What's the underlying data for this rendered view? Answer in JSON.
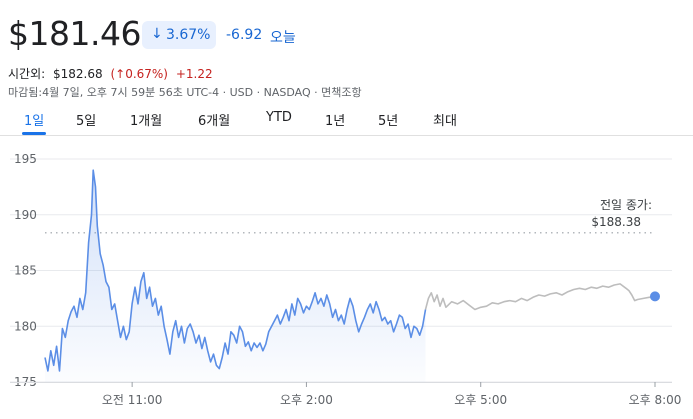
{
  "quote": {
    "price": "$181.46",
    "change_pct": "3.67%",
    "change_abs": "-6.92",
    "period_label": "오늘",
    "after_hours_label": "시간외:",
    "after_hours_price": "$182.68",
    "after_hours_pct": "(↑0.67%)",
    "after_hours_abs": "+1.22",
    "closed_line": "마감됨:4월 7일, 오후 7시 59분 56초 UTC-4 · USD · NASDAQ · 면책조항",
    "down_arrow": "↓",
    "colors": {
      "down": "#1967d2",
      "up": "#c5221f",
      "line": "#5b8ee6",
      "ext_line": "#bdbdbd"
    }
  },
  "tabs": [
    {
      "label": "1일",
      "active": true
    },
    {
      "label": "5일"
    },
    {
      "label": "1개월"
    },
    {
      "label": "6개월"
    },
    {
      "label": "YTD"
    },
    {
      "label": "1년"
    },
    {
      "label": "5년"
    },
    {
      "label": "최대"
    }
  ],
  "chart_data": {
    "type": "line",
    "title": "",
    "xlabel": "",
    "ylabel": "",
    "ylim": [
      175,
      195
    ],
    "yticks": [
      175,
      180,
      185,
      190,
      195
    ],
    "xticks": [
      {
        "t": 1.5,
        "label": "오전 11:00"
      },
      {
        "t": 4.5,
        "label": "오후 2:00"
      },
      {
        "t": 7.5,
        "label": "오후 5:00"
      },
      {
        "t": 10.5,
        "label": "오후 8:00"
      }
    ],
    "x_unit": "hours since 9:30",
    "previous_close": 188.38,
    "previous_close_label": [
      "전일 종가:",
      "$188.38"
    ],
    "regular_session": [
      [
        0.0,
        177.2
      ],
      [
        0.05,
        176.0
      ],
      [
        0.1,
        177.8
      ],
      [
        0.15,
        176.5
      ],
      [
        0.2,
        178.2
      ],
      [
        0.25,
        176.0
      ],
      [
        0.3,
        179.8
      ],
      [
        0.35,
        179.0
      ],
      [
        0.4,
        180.5
      ],
      [
        0.45,
        181.3
      ],
      [
        0.5,
        181.8
      ],
      [
        0.55,
        180.8
      ],
      [
        0.6,
        182.5
      ],
      [
        0.65,
        181.5
      ],
      [
        0.7,
        183.0
      ],
      [
        0.75,
        187.5
      ],
      [
        0.8,
        190.0
      ],
      [
        0.83,
        194.0
      ],
      [
        0.87,
        192.5
      ],
      [
        0.9,
        189.0
      ],
      [
        0.95,
        186.5
      ],
      [
        1.0,
        185.5
      ],
      [
        1.05,
        184.0
      ],
      [
        1.1,
        183.5
      ],
      [
        1.15,
        181.5
      ],
      [
        1.2,
        182.0
      ],
      [
        1.25,
        180.5
      ],
      [
        1.3,
        179.0
      ],
      [
        1.35,
        180.0
      ],
      [
        1.4,
        178.8
      ],
      [
        1.45,
        179.5
      ],
      [
        1.5,
        182.0
      ],
      [
        1.55,
        183.5
      ],
      [
        1.6,
        182.0
      ],
      [
        1.65,
        184.0
      ],
      [
        1.7,
        184.8
      ],
      [
        1.75,
        182.5
      ],
      [
        1.8,
        183.5
      ],
      [
        1.85,
        181.8
      ],
      [
        1.9,
        182.5
      ],
      [
        1.95,
        181.0
      ],
      [
        2.0,
        181.8
      ],
      [
        2.05,
        180.0
      ],
      [
        2.1,
        178.8
      ],
      [
        2.15,
        177.5
      ],
      [
        2.2,
        179.5
      ],
      [
        2.25,
        180.5
      ],
      [
        2.3,
        179.0
      ],
      [
        2.35,
        180.0
      ],
      [
        2.4,
        178.5
      ],
      [
        2.45,
        179.8
      ],
      [
        2.5,
        180.2
      ],
      [
        2.55,
        179.5
      ],
      [
        2.6,
        178.5
      ],
      [
        2.65,
        179.2
      ],
      [
        2.7,
        178.0
      ],
      [
        2.75,
        179.0
      ],
      [
        2.8,
        177.8
      ],
      [
        2.85,
        176.8
      ],
      [
        2.9,
        177.5
      ],
      [
        2.95,
        176.5
      ],
      [
        3.0,
        176.2
      ],
      [
        3.05,
        177.2
      ],
      [
        3.1,
        178.5
      ],
      [
        3.15,
        177.5
      ],
      [
        3.2,
        179.5
      ],
      [
        3.25,
        179.2
      ],
      [
        3.3,
        178.5
      ],
      [
        3.35,
        180.0
      ],
      [
        3.4,
        179.5
      ],
      [
        3.45,
        178.2
      ],
      [
        3.5,
        178.6
      ],
      [
        3.55,
        177.8
      ],
      [
        3.6,
        178.5
      ],
      [
        3.65,
        178.1
      ],
      [
        3.7,
        178.5
      ],
      [
        3.75,
        177.8
      ],
      [
        3.8,
        178.4
      ],
      [
        3.85,
        179.5
      ],
      [
        3.9,
        180.0
      ],
      [
        3.95,
        180.5
      ],
      [
        4.0,
        181.0
      ],
      [
        4.05,
        180.2
      ],
      [
        4.1,
        180.8
      ],
      [
        4.15,
        181.5
      ],
      [
        4.2,
        180.5
      ],
      [
        4.25,
        182.0
      ],
      [
        4.3,
        181.0
      ],
      [
        4.35,
        182.5
      ],
      [
        4.4,
        182.0
      ],
      [
        4.45,
        181.2
      ],
      [
        4.5,
        181.8
      ],
      [
        4.55,
        181.5
      ],
      [
        4.6,
        182.2
      ],
      [
        4.65,
        183.0
      ],
      [
        4.7,
        182.0
      ],
      [
        4.75,
        182.5
      ],
      [
        4.8,
        181.8
      ],
      [
        4.85,
        182.8
      ],
      [
        4.9,
        182.0
      ],
      [
        4.95,
        180.8
      ],
      [
        5.0,
        181.5
      ],
      [
        5.05,
        180.5
      ],
      [
        5.1,
        181.0
      ],
      [
        5.15,
        180.2
      ],
      [
        5.2,
        181.5
      ],
      [
        5.25,
        182.5
      ],
      [
        5.3,
        181.8
      ],
      [
        5.35,
        180.5
      ],
      [
        5.4,
        179.5
      ],
      [
        5.45,
        180.2
      ],
      [
        5.5,
        180.8
      ],
      [
        5.55,
        181.5
      ],
      [
        5.6,
        182.0
      ],
      [
        5.65,
        181.2
      ],
      [
        5.7,
        182.2
      ],
      [
        5.75,
        181.5
      ],
      [
        5.8,
        180.5
      ],
      [
        5.85,
        180.8
      ],
      [
        5.9,
        180.2
      ],
      [
        5.95,
        180.5
      ],
      [
        6.0,
        179.5
      ],
      [
        6.05,
        180.2
      ],
      [
        6.1,
        181.0
      ],
      [
        6.15,
        180.8
      ],
      [
        6.2,
        179.8
      ],
      [
        6.25,
        180.2
      ],
      [
        6.3,
        179.0
      ],
      [
        6.35,
        180.0
      ],
      [
        6.4,
        179.8
      ],
      [
        6.45,
        179.2
      ],
      [
        6.5,
        180.0
      ],
      [
        6.55,
        181.5
      ]
    ],
    "extended_session": [
      [
        6.55,
        181.5
      ],
      [
        6.6,
        182.5
      ],
      [
        6.65,
        183.0
      ],
      [
        6.7,
        182.2
      ],
      [
        6.75,
        182.8
      ],
      [
        6.8,
        181.8
      ],
      [
        6.85,
        182.5
      ],
      [
        6.9,
        181.7
      ],
      [
        7.0,
        182.2
      ],
      [
        7.1,
        182.0
      ],
      [
        7.2,
        182.3
      ],
      [
        7.3,
        181.9
      ],
      [
        7.4,
        181.5
      ],
      [
        7.5,
        181.7
      ],
      [
        7.6,
        181.8
      ],
      [
        7.7,
        182.1
      ],
      [
        7.8,
        182.0
      ],
      [
        7.9,
        182.2
      ],
      [
        8.0,
        182.3
      ],
      [
        8.1,
        182.2
      ],
      [
        8.2,
        182.5
      ],
      [
        8.3,
        182.3
      ],
      [
        8.4,
        182.6
      ],
      [
        8.5,
        182.8
      ],
      [
        8.6,
        182.7
      ],
      [
        8.7,
        182.9
      ],
      [
        8.8,
        183.0
      ],
      [
        8.9,
        182.8
      ],
      [
        9.0,
        183.1
      ],
      [
        9.1,
        183.3
      ],
      [
        9.2,
        183.4
      ],
      [
        9.3,
        183.3
      ],
      [
        9.4,
        183.5
      ],
      [
        9.5,
        183.4
      ],
      [
        9.6,
        183.6
      ],
      [
        9.7,
        183.5
      ],
      [
        9.8,
        183.7
      ],
      [
        9.9,
        183.8
      ],
      [
        10.0,
        183.4
      ],
      [
        10.05,
        183.2
      ],
      [
        10.1,
        182.8
      ],
      [
        10.15,
        182.3
      ],
      [
        10.2,
        182.4
      ],
      [
        10.3,
        182.5
      ],
      [
        10.4,
        182.6
      ],
      [
        10.5,
        182.68
      ]
    ],
    "last_point": [
      10.5,
      182.68
    ]
  }
}
